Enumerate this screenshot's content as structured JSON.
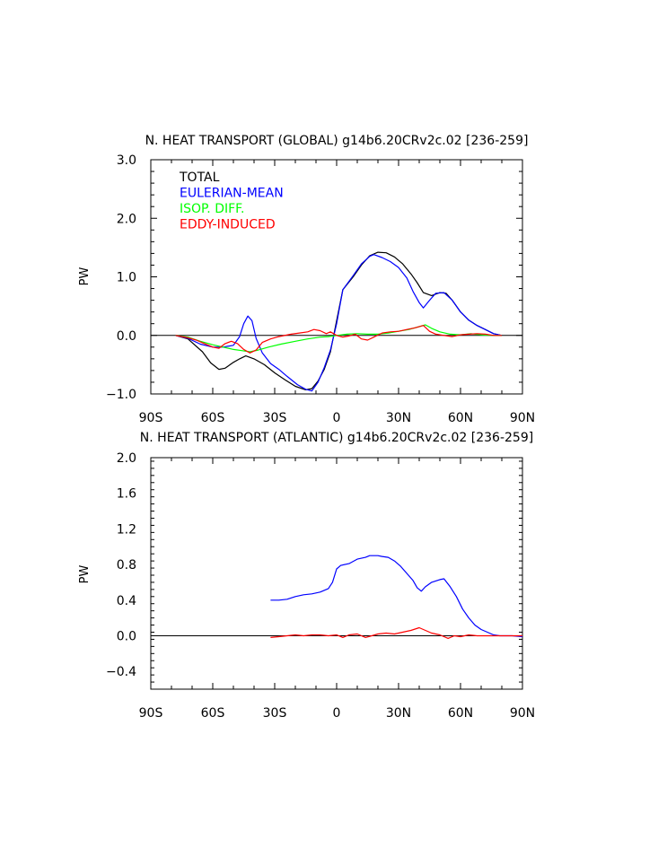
{
  "chart_data": [
    {
      "type": "line",
      "title": "N. HEAT TRANSPORT (GLOBAL) g14b6.20CRv2c.02 [236-259]",
      "ylabel": "PW",
      "xlim": [
        -90,
        90
      ],
      "ylim": [
        -1.0,
        3.0
      ],
      "xticks": [
        -90,
        -60,
        -30,
        0,
        30,
        60,
        90
      ],
      "xtick_labels": [
        "90S",
        "60S",
        "30S",
        "0",
        "30N",
        "60N",
        "90N"
      ],
      "yticks": [
        -1.0,
        0.0,
        1.0,
        2.0,
        3.0
      ],
      "ytick_labels": [
        "−1.0",
        "0.0",
        "1.0",
        "2.0",
        "3.0"
      ],
      "legend_position": "top-left",
      "zero_line": true,
      "series": [
        {
          "name": "TOTAL",
          "color": "#000000",
          "points": [
            [
              -78,
              0
            ],
            [
              -72,
              -0.06
            ],
            [
              -65,
              -0.28
            ],
            [
              -61,
              -0.47
            ],
            [
              -57,
              -0.58
            ],
            [
              -54,
              -0.56
            ],
            [
              -50,
              -0.46
            ],
            [
              -47,
              -0.4
            ],
            [
              -44,
              -0.35
            ],
            [
              -40,
              -0.4
            ],
            [
              -35,
              -0.5
            ],
            [
              -30,
              -0.64
            ],
            [
              -25,
              -0.76
            ],
            [
              -20,
              -0.87
            ],
            [
              -15,
              -0.93
            ],
            [
              -12,
              -0.91
            ],
            [
              -9,
              -0.78
            ],
            [
              -6,
              -0.58
            ],
            [
              -3,
              -0.28
            ],
            [
              0,
              0.25
            ],
            [
              3,
              0.78
            ],
            [
              8,
              1.0
            ],
            [
              12,
              1.2
            ],
            [
              16,
              1.36
            ],
            [
              20,
              1.42
            ],
            [
              24,
              1.41
            ],
            [
              28,
              1.34
            ],
            [
              32,
              1.22
            ],
            [
              36,
              1.05
            ],
            [
              39,
              0.9
            ],
            [
              42,
              0.73
            ],
            [
              46,
              0.68
            ],
            [
              50,
              0.73
            ],
            [
              53,
              0.72
            ],
            [
              56,
              0.6
            ],
            [
              60,
              0.4
            ],
            [
              64,
              0.26
            ],
            [
              68,
              0.17
            ],
            [
              72,
              0.1
            ],
            [
              76,
              0.03
            ],
            [
              80,
              0
            ]
          ]
        },
        {
          "name": "EULERIAN-MEAN",
          "color": "#0000ff",
          "points": [
            [
              -78,
              0
            ],
            [
              -72,
              -0.05
            ],
            [
              -66,
              -0.15
            ],
            [
              -60,
              -0.2
            ],
            [
              -55,
              -0.2
            ],
            [
              -50,
              -0.17
            ],
            [
              -47,
              -0.02
            ],
            [
              -45,
              0.2
            ],
            [
              -43,
              0.33
            ],
            [
              -41,
              0.25
            ],
            [
              -39,
              -0.05
            ],
            [
              -36,
              -0.3
            ],
            [
              -32,
              -0.48
            ],
            [
              -28,
              -0.58
            ],
            [
              -24,
              -0.7
            ],
            [
              -19,
              -0.84
            ],
            [
              -15,
              -0.92
            ],
            [
              -12,
              -0.95
            ],
            [
              -9,
              -0.8
            ],
            [
              -6,
              -0.55
            ],
            [
              -3,
              -0.25
            ],
            [
              0,
              0.2
            ],
            [
              3,
              0.78
            ],
            [
              8,
              1.02
            ],
            [
              12,
              1.22
            ],
            [
              16,
              1.35
            ],
            [
              18,
              1.38
            ],
            [
              22,
              1.33
            ],
            [
              26,
              1.26
            ],
            [
              30,
              1.16
            ],
            [
              34,
              0.98
            ],
            [
              37,
              0.75
            ],
            [
              40,
              0.56
            ],
            [
              42,
              0.47
            ],
            [
              45,
              0.6
            ],
            [
              48,
              0.72
            ],
            [
              52,
              0.73
            ],
            [
              56,
              0.6
            ],
            [
              60,
              0.4
            ],
            [
              64,
              0.26
            ],
            [
              68,
              0.17
            ],
            [
              72,
              0.1
            ],
            [
              76,
              0.03
            ],
            [
              80,
              0
            ]
          ]
        },
        {
          "name": "ISOP. DIFF.",
          "color": "#00ff00",
          "points": [
            [
              -78,
              0
            ],
            [
              -72,
              -0.03
            ],
            [
              -66,
              -0.1
            ],
            [
              -60,
              -0.16
            ],
            [
              -55,
              -0.2
            ],
            [
              -50,
              -0.24
            ],
            [
              -46,
              -0.26
            ],
            [
              -42,
              -0.28
            ],
            [
              -38,
              -0.25
            ],
            [
              -33,
              -0.2
            ],
            [
              -27,
              -0.15
            ],
            [
              -20,
              -0.1
            ],
            [
              -14,
              -0.06
            ],
            [
              -8,
              -0.03
            ],
            [
              -4,
              -0.02
            ],
            [
              0,
              0
            ],
            [
              5,
              0.02
            ],
            [
              10,
              0.03
            ],
            [
              15,
              0.02
            ],
            [
              20,
              0.02
            ],
            [
              25,
              0.04
            ],
            [
              30,
              0.07
            ],
            [
              35,
              0.1
            ],
            [
              40,
              0.15
            ],
            [
              43,
              0.18
            ],
            [
              46,
              0.12
            ],
            [
              50,
              0.06
            ],
            [
              55,
              0.02
            ],
            [
              60,
              0.01
            ],
            [
              65,
              0.03
            ],
            [
              70,
              0.01
            ],
            [
              75,
              0
            ],
            [
              80,
              0
            ]
          ]
        },
        {
          "name": "EDDY-INDUCED",
          "color": "#ff0000",
          "points": [
            [
              -78,
              0
            ],
            [
              -72,
              -0.04
            ],
            [
              -68,
              -0.08
            ],
            [
              -64,
              -0.14
            ],
            [
              -60,
              -0.2
            ],
            [
              -57,
              -0.22
            ],
            [
              -54,
              -0.14
            ],
            [
              -51,
              -0.1
            ],
            [
              -48,
              -0.14
            ],
            [
              -45,
              -0.24
            ],
            [
              -42,
              -0.3
            ],
            [
              -39,
              -0.25
            ],
            [
              -36,
              -0.12
            ],
            [
              -32,
              -0.06
            ],
            [
              -28,
              -0.02
            ],
            [
              -22,
              0.02
            ],
            [
              -18,
              0.04
            ],
            [
              -14,
              0.06
            ],
            [
              -11,
              0.1
            ],
            [
              -8,
              0.08
            ],
            [
              -5,
              0.03
            ],
            [
              -3,
              0.06
            ],
            [
              0,
              0
            ],
            [
              3,
              -0.03
            ],
            [
              6,
              -0.01
            ],
            [
              9,
              0.02
            ],
            [
              12,
              -0.06
            ],
            [
              15,
              -0.08
            ],
            [
              18,
              -0.03
            ],
            [
              22,
              0.04
            ],
            [
              26,
              0.06
            ],
            [
              30,
              0.07
            ],
            [
              34,
              0.1
            ],
            [
              38,
              0.13
            ],
            [
              42,
              0.17
            ],
            [
              45,
              0.07
            ],
            [
              48,
              0.02
            ],
            [
              52,
              0
            ],
            [
              56,
              -0.02
            ],
            [
              60,
              0.01
            ],
            [
              64,
              0.02
            ],
            [
              68,
              0.03
            ],
            [
              72,
              0.02
            ],
            [
              76,
              0
            ],
            [
              80,
              0
            ]
          ]
        }
      ]
    },
    {
      "type": "line",
      "title": "N. HEAT TRANSPORT (ATLANTIC) g14b6.20CRv2c.02 [236-259]",
      "ylabel": "PW",
      "xlim": [
        -90,
        90
      ],
      "ylim": [
        -0.6,
        2.0
      ],
      "xticks": [
        -90,
        -60,
        -30,
        0,
        30,
        60,
        90
      ],
      "xtick_labels": [
        "90S",
        "60S",
        "30S",
        "0",
        "30N",
        "60N",
        "90N"
      ],
      "yticks": [
        -0.4,
        0.0,
        0.4,
        0.8,
        1.2,
        1.6,
        2.0
      ],
      "ytick_labels": [
        "−0.4",
        "0.0",
        "0.4",
        "0.8",
        "1.2",
        "1.6",
        "2.0"
      ],
      "zero_line": true,
      "series": [
        {
          "name": "EULERIAN-MEAN",
          "color": "#0000ff",
          "points": [
            [
              -32,
              0.4
            ],
            [
              -28,
              0.4
            ],
            [
              -24,
              0.41
            ],
            [
              -20,
              0.44
            ],
            [
              -16,
              0.46
            ],
            [
              -12,
              0.47
            ],
            [
              -8,
              0.49
            ],
            [
              -4,
              0.53
            ],
            [
              -2,
              0.6
            ],
            [
              0,
              0.75
            ],
            [
              2,
              0.79
            ],
            [
              6,
              0.81
            ],
            [
              10,
              0.86
            ],
            [
              14,
              0.88
            ],
            [
              16,
              0.9
            ],
            [
              20,
              0.9
            ],
            [
              22,
              0.89
            ],
            [
              25,
              0.88
            ],
            [
              28,
              0.84
            ],
            [
              31,
              0.78
            ],
            [
              34,
              0.7
            ],
            [
              37,
              0.62
            ],
            [
              39,
              0.54
            ],
            [
              41,
              0.5
            ],
            [
              43,
              0.55
            ],
            [
              46,
              0.6
            ],
            [
              50,
              0.63
            ],
            [
              52,
              0.64
            ],
            [
              55,
              0.55
            ],
            [
              58,
              0.44
            ],
            [
              61,
              0.3
            ],
            [
              64,
              0.2
            ],
            [
              67,
              0.12
            ],
            [
              70,
              0.07
            ],
            [
              73,
              0.04
            ],
            [
              76,
              0.01
            ],
            [
              79,
              0
            ],
            [
              85,
              0
            ],
            [
              90,
              -0.01
            ]
          ]
        },
        {
          "name": "EDDY-INDUCED",
          "color": "#ff0000",
          "points": [
            [
              -32,
              -0.02
            ],
            [
              -28,
              -0.01
            ],
            [
              -24,
              0
            ],
            [
              -20,
              0.01
            ],
            [
              -16,
              0
            ],
            [
              -12,
              0.01
            ],
            [
              -8,
              0.01
            ],
            [
              -4,
              0
            ],
            [
              0,
              0.01
            ],
            [
              3,
              -0.02
            ],
            [
              6,
              0.01
            ],
            [
              10,
              0.02
            ],
            [
              14,
              -0.02
            ],
            [
              17,
              0
            ],
            [
              20,
              0.02
            ],
            [
              24,
              0.03
            ],
            [
              28,
              0.02
            ],
            [
              32,
              0.04
            ],
            [
              36,
              0.06
            ],
            [
              40,
              0.09
            ],
            [
              43,
              0.06
            ],
            [
              46,
              0.03
            ],
            [
              50,
              0.01
            ],
            [
              54,
              -0.03
            ],
            [
              57,
              0
            ],
            [
              60,
              -0.01
            ],
            [
              64,
              0.01
            ],
            [
              68,
              0
            ],
            [
              72,
              0
            ],
            [
              76,
              0
            ],
            [
              80,
              0
            ],
            [
              85,
              0
            ],
            [
              90,
              0
            ]
          ]
        }
      ]
    }
  ]
}
